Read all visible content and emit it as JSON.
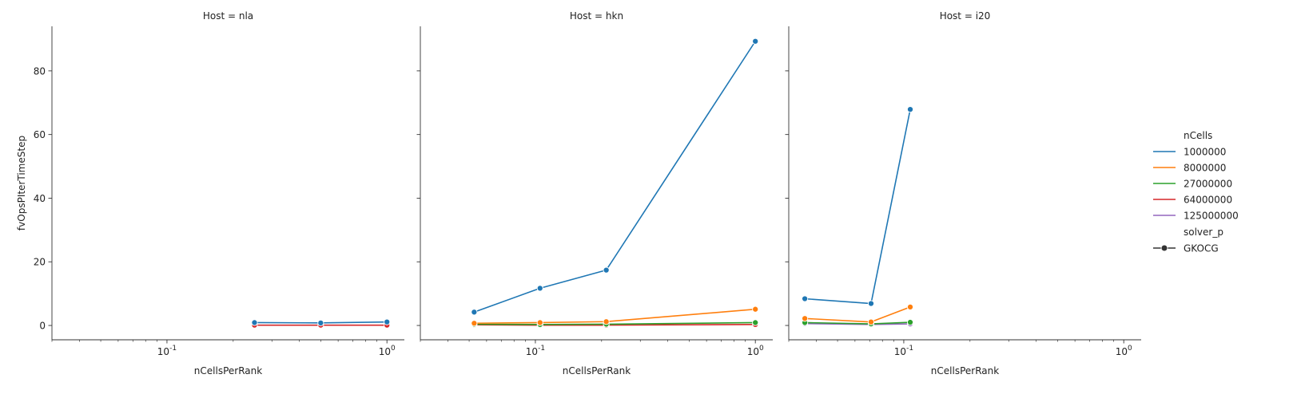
{
  "chart_data": {
    "type": "line",
    "facet_variable": "Host",
    "xlabel": "nCellsPerRank",
    "ylabel": "fvOpsPIterTimeStep",
    "x_scale": "log",
    "xlim": [
      0.03,
      1.2
    ],
    "ylim": [
      -4.5,
      94
    ],
    "x_tick_labels": [
      "10^-1",
      "10^0"
    ],
    "y_ticks": [
      0,
      20,
      40,
      60,
      80
    ],
    "grid": false,
    "legend": {
      "placement": "right",
      "hue_title": "nCells",
      "style_title": "solver_p",
      "entries": [
        {
          "label": "1000000",
          "color": "#1f77b4"
        },
        {
          "label": "8000000",
          "color": "#ff7f0e"
        },
        {
          "label": "27000000",
          "color": "#2ca02c"
        },
        {
          "label": "64000000",
          "color": "#d62728"
        },
        {
          "label": "125000000",
          "color": "#9467bd"
        }
      ],
      "style_entries": [
        {
          "label": "GKOCG",
          "marker": "circle"
        }
      ]
    },
    "panels": [
      {
        "title": "Host = nla",
        "series": [
          {
            "name": "1000000",
            "x": [
              0.25,
              0.5,
              1.0
            ],
            "y": [
              0.9,
              0.8,
              1.1
            ]
          },
          {
            "name": "64000000",
            "x": [
              0.25,
              0.5,
              1.0
            ],
            "y": [
              0.1,
              0.1,
              0.1
            ]
          }
        ]
      },
      {
        "title": "Host = hkn",
        "series": [
          {
            "name": "1000000",
            "x": [
              0.0527,
              0.105,
              0.21,
              1.0
            ],
            "y": [
              4.2,
              11.7,
              17.4,
              89.3
            ]
          },
          {
            "name": "8000000",
            "x": [
              0.0527,
              0.105,
              0.21,
              1.0
            ],
            "y": [
              0.7,
              0.9,
              1.2,
              5.1
            ]
          },
          {
            "name": "27000000",
            "x": [
              0.0527,
              0.105,
              0.21,
              1.0
            ],
            "y": [
              0.4,
              0.3,
              0.4,
              0.9
            ]
          },
          {
            "name": "64000000",
            "x": [
              0.0527,
              0.105,
              0.21,
              1.0
            ],
            "y": [
              0.2,
              0.1,
              0.1,
              0.3
            ]
          }
        ]
      },
      {
        "title": "Host = i20",
        "series": [
          {
            "name": "1000000",
            "x": [
              0.0355,
              0.071,
              0.107
            ],
            "y": [
              8.4,
              6.9,
              67.9
            ]
          },
          {
            "name": "8000000",
            "x": [
              0.0355,
              0.071,
              0.107
            ],
            "y": [
              2.2,
              1.1,
              5.8
            ]
          },
          {
            "name": "27000000",
            "x": [
              0.0355,
              0.071,
              0.107
            ],
            "y": [
              0.9,
              0.5,
              1.0
            ]
          },
          {
            "name": "125000000",
            "x": [
              0.0355,
              0.071,
              0.107
            ],
            "y": [
              0.6,
              0.3,
              0.5
            ]
          }
        ]
      }
    ]
  }
}
